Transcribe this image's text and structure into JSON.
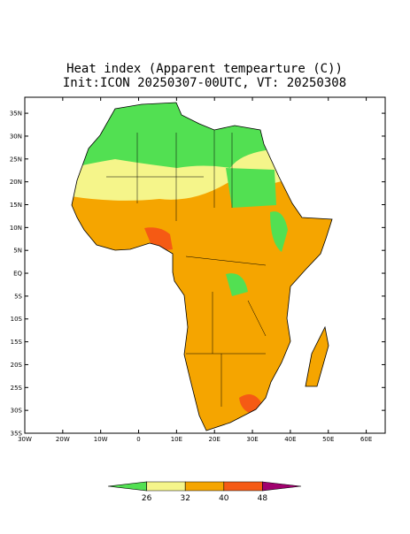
{
  "map": {
    "title": "Heat index (Apparent tempearture (C))",
    "subtitle": "Init:ICON 20250307-00UTC, VT: 20250308",
    "xlim": [
      -30,
      65
    ],
    "ylim": [
      -35,
      38.5
    ],
    "xticks": [
      {
        "value": -30,
        "label": "30W"
      },
      {
        "value": -20,
        "label": "20W"
      },
      {
        "value": -10,
        "label": "10W"
      },
      0,
      {
        "value": 10,
        "label": "10E"
      },
      {
        "value": 20,
        "label": "20E"
      },
      {
        "value": 30,
        "label": "30E"
      },
      {
        "value": 40,
        "label": "40E"
      },
      {
        "value": 50,
        "label": "50E"
      },
      {
        "value": 60,
        "label": "60E"
      }
    ],
    "yticks": [
      {
        "value": 35,
        "label": "35N"
      },
      {
        "value": 30,
        "label": "30N"
      },
      {
        "value": 25,
        "label": "25N"
      },
      {
        "value": 20,
        "label": "20N"
      },
      {
        "value": 15,
        "label": "15N"
      },
      {
        "value": 10,
        "label": "10N"
      },
      {
        "value": 5,
        "label": "5N"
      },
      {
        "value": 0,
        "label": "EQ"
      },
      {
        "value": -5,
        "label": "5S"
      },
      {
        "value": -10,
        "label": "10S"
      },
      {
        "value": -15,
        "label": "15S"
      },
      {
        "value": -20,
        "label": "20S"
      },
      {
        "value": -25,
        "label": "25S"
      },
      {
        "value": -30,
        "label": "30S"
      },
      {
        "value": -35,
        "label": "35S"
      }
    ],
    "colorbar": {
      "levels": [
        26,
        32,
        40,
        48
      ],
      "colors": [
        "#52e052",
        "#f5f58a",
        "#f5a500",
        "#f55a14",
        "#a0006e"
      ]
    }
  }
}
